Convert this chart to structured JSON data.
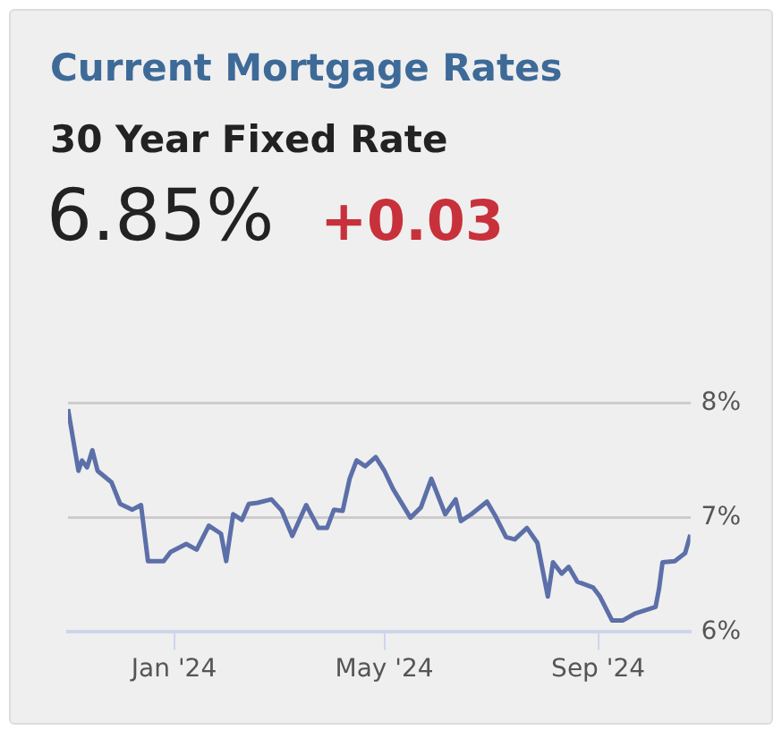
{
  "chart_data": {
    "type": "line",
    "title": "Current Mortgage Rates",
    "subtitle": "30 Year Fixed Rate",
    "annotations": [
      "6.85%",
      "+0.03"
    ],
    "x": [
      "2023-11-01",
      "2023-11-07",
      "2023-11-09",
      "2023-11-12",
      "2023-11-15",
      "2023-11-18",
      "2023-11-26",
      "2023-12-01",
      "2023-12-08",
      "2023-12-13",
      "2023-12-17",
      "2023-12-26",
      "2023-12-30",
      "2024-01-08",
      "2024-01-14",
      "2024-01-21",
      "2024-01-28",
      "2024-01-31",
      "2024-02-04",
      "2024-02-09",
      "2024-02-13",
      "2024-02-18",
      "2024-02-26",
      "2024-03-03",
      "2024-03-09",
      "2024-03-17",
      "2024-03-24",
      "2024-03-29",
      "2024-04-02",
      "2024-04-07",
      "2024-04-11",
      "2024-04-15",
      "2024-04-20",
      "2024-04-26",
      "2024-05-01",
      "2024-05-06",
      "2024-05-16",
      "2024-05-22",
      "2024-05-28",
      "2024-06-05",
      "2024-06-11",
      "2024-06-14",
      "2024-06-20",
      "2024-06-29",
      "2024-07-04",
      "2024-07-10",
      "2024-07-15",
      "2024-07-22",
      "2024-07-28",
      "2024-08-03",
      "2024-08-06",
      "2024-08-11",
      "2024-08-15",
      "2024-08-20",
      "2024-08-29",
      "2024-09-02",
      "2024-09-09",
      "2024-09-15",
      "2024-09-22",
      "2024-10-04",
      "2024-10-06",
      "2024-10-08",
      "2024-10-15",
      "2024-10-21",
      "2024-10-24"
    ],
    "series": [
      {
        "color": "#5c6fa8",
        "values": [
          7.95,
          7.41,
          7.5,
          7.44,
          7.59,
          7.41,
          7.31,
          7.12,
          7.07,
          7.11,
          6.62,
          6.62,
          6.7,
          6.77,
          6.72,
          6.93,
          6.86,
          6.62,
          7.03,
          6.98,
          7.12,
          7.13,
          7.16,
          7.06,
          6.84,
          7.11,
          6.91,
          6.91,
          7.07,
          7.06,
          7.34,
          7.5,
          7.45,
          7.53,
          7.41,
          7.25,
          7.0,
          7.09,
          7.34,
          7.03,
          7.16,
          6.97,
          7.03,
          7.14,
          7.01,
          6.83,
          6.81,
          6.91,
          6.78,
          6.31,
          6.61,
          6.51,
          6.57,
          6.44,
          6.39,
          6.31,
          6.1,
          6.1,
          6.16,
          6.22,
          6.38,
          6.61,
          6.62,
          6.69,
          6.85
        ]
      }
    ],
    "xlim": [
      "2023-11-01",
      "2024-10-24"
    ],
    "xticks": [
      {
        "value": "2024-01-01",
        "label": "Jan '24"
      },
      {
        "value": "2024-05-01",
        "label": "May '24"
      },
      {
        "value": "2024-09-01",
        "label": "Sep '24"
      }
    ],
    "ylim": [
      6,
      8
    ],
    "yticks": [
      {
        "value": 6,
        "label": "6%"
      },
      {
        "value": 7,
        "label": "7%"
      },
      {
        "value": 8,
        "label": "8%"
      }
    ],
    "grid": "y",
    "legend": false,
    "marker": "none",
    "line_style": "solid"
  }
}
